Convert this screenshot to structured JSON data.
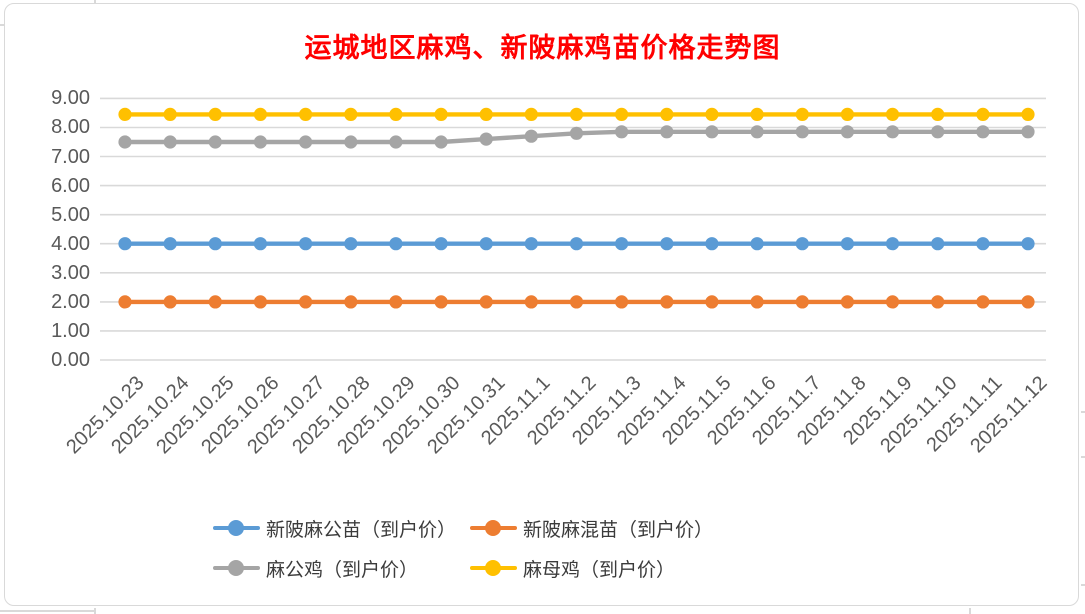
{
  "title": "运城地区麻鸡、新陂麻鸡苗价格走势图",
  "colors": {
    "title": "#FF0000",
    "axis_text": "#595959",
    "gridline": "#D9D9D9",
    "frame_border": "#D9D9D9",
    "background": "#FFFFFF"
  },
  "chart_data": {
    "type": "line",
    "title": "运城地区麻鸡、新陂麻鸡苗价格走势图",
    "categories": [
      "2025.10.23",
      "2025.10.24",
      "2025.10.25",
      "2025.10.26",
      "2025.10.27",
      "2025.10.28",
      "2025.10.29",
      "2025.10.30",
      "2025.10.31",
      "2025.11.1",
      "2025.11.2",
      "2025.11.3",
      "2025.11.4",
      "2025.11.5",
      "2025.11.6",
      "2025.11.7",
      "2025.11.8",
      "2025.11.9",
      "2025.11.10",
      "2025.11.11",
      "2025.11.12"
    ],
    "series": [
      {
        "name": "新陂麻公苗（到户价）",
        "color": "#5B9BD5",
        "values": [
          4.0,
          4.0,
          4.0,
          4.0,
          4.0,
          4.0,
          4.0,
          4.0,
          4.0,
          4.0,
          4.0,
          4.0,
          4.0,
          4.0,
          4.0,
          4.0,
          4.0,
          4.0,
          4.0,
          4.0,
          4.0
        ]
      },
      {
        "name": "新陂麻混苗（到户价）",
        "color": "#ED7D31",
        "values": [
          2.0,
          2.0,
          2.0,
          2.0,
          2.0,
          2.0,
          2.0,
          2.0,
          2.0,
          2.0,
          2.0,
          2.0,
          2.0,
          2.0,
          2.0,
          2.0,
          2.0,
          2.0,
          2.0,
          2.0,
          2.0
        ]
      },
      {
        "name": "麻公鸡（到户价）",
        "color": "#A5A5A5",
        "values": [
          7.5,
          7.5,
          7.5,
          7.5,
          7.5,
          7.5,
          7.5,
          7.5,
          7.6,
          7.7,
          7.8,
          7.85,
          7.85,
          7.85,
          7.85,
          7.85,
          7.85,
          7.85,
          7.85,
          7.85,
          7.85
        ]
      },
      {
        "name": "麻母鸡（到户价）",
        "color": "#FFC000",
        "values": [
          8.45,
          8.45,
          8.45,
          8.45,
          8.45,
          8.45,
          8.45,
          8.45,
          8.45,
          8.45,
          8.45,
          8.45,
          8.45,
          8.45,
          8.45,
          8.45,
          8.45,
          8.45,
          8.45,
          8.45,
          8.45
        ]
      }
    ],
    "ylim": [
      0,
      9
    ],
    "ytick_labels": [
      "9.00",
      "8.00",
      "7.00",
      "6.00",
      "5.00",
      "4.00",
      "3.00",
      "2.00",
      "1.00",
      "0.00"
    ],
    "grid": true,
    "legend_position": "bottom"
  }
}
